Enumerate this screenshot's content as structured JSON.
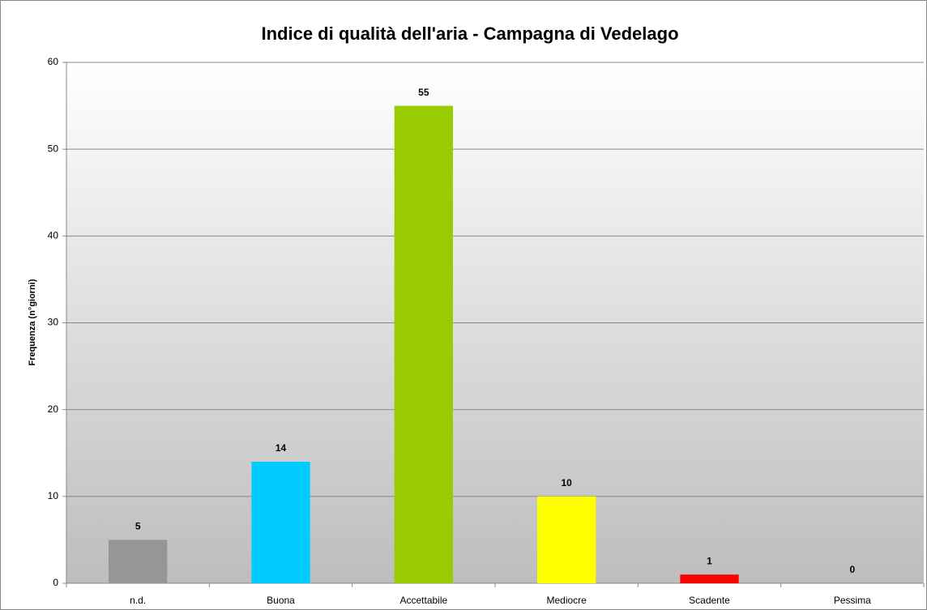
{
  "chart_data": {
    "type": "bar",
    "title": "Indice di qualità dell'aria - Campagna di Vedelago",
    "y_label": "Frequenza (n°giorni)",
    "categories": [
      "n.d.",
      "Buona",
      "Accettabile",
      "Mediocre",
      "Scadente",
      "Pessima"
    ],
    "values": [
      5,
      14,
      55,
      10,
      1,
      0
    ],
    "colors": [
      "#969696",
      "#00ccff",
      "#99cc00",
      "#ffff00",
      "#ff0000",
      "#808080"
    ],
    "ylim": [
      0,
      60
    ],
    "yticks": [
      0,
      10,
      20,
      30,
      40,
      50,
      60
    ],
    "grid": true
  }
}
